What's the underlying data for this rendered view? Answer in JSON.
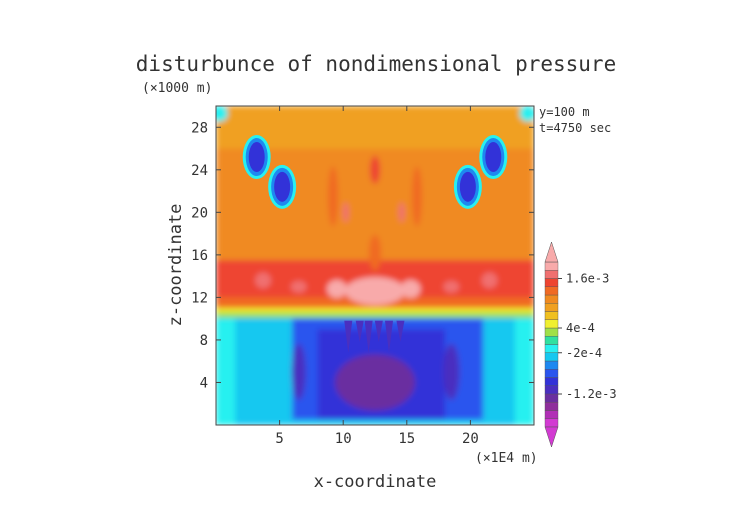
{
  "chart_data": {
    "type": "heatmap",
    "title": "disturbunce of nondimensional pressure",
    "z_unit_label": "(×1000 m)",
    "x_unit_label": "(×1E4 m)",
    "xlabel": "x-coordinate",
    "ylabel": "z-coordinate",
    "annotations": [
      "y=100 m",
      "t=4750 sec"
    ],
    "xlim": [
      0,
      25
    ],
    "ylim": [
      0,
      30
    ],
    "x_ticks": [
      5,
      10,
      15,
      20
    ],
    "y_ticks": [
      4,
      8,
      12,
      16,
      20,
      24,
      28
    ],
    "colorbar": {
      "orientation": "vertical",
      "levels_min": -0.002,
      "level_step": 0.0002,
      "n_levels": 20,
      "tick_labels": [
        {
          "label": "-1.2e-3",
          "value": -0.0012
        },
        {
          "label": "-2e-4",
          "value": -0.0002
        },
        {
          "label": "4e-4",
          "value": 0.0004
        },
        {
          "label": "1.6e-3",
          "value": 0.0016
        }
      ],
      "colors": [
        "#d23ad2",
        "#b12fb6",
        "#8f2f9c",
        "#6a2fa0",
        "#4a2fc0",
        "#3232d8",
        "#2a55ee",
        "#1e88f0",
        "#16c8f0",
        "#28f0f0",
        "#30e0a0",
        "#a0e048",
        "#f0f030",
        "#f0c020",
        "#f0a020",
        "#f08a20",
        "#f06a24",
        "#ee4430",
        "#f07070",
        "#f8aaaa"
      ],
      "extends": [
        "min",
        "max"
      ]
    }
  }
}
